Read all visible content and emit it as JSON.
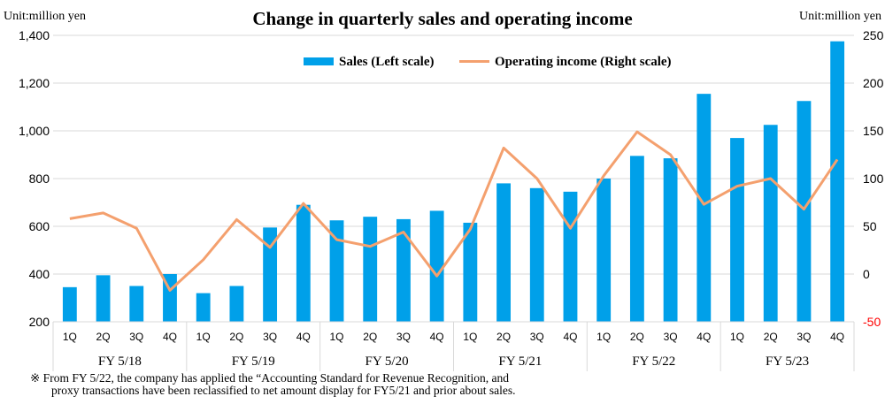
{
  "chart_data": {
    "type": "bar+line",
    "title": "Change in quarterly sales and operating income",
    "left_unit": "Unit:million yen",
    "right_unit": "Unit:million yen",
    "left_axis": {
      "min": 200,
      "max": 1400,
      "ticks": [
        "200",
        "400",
        "600",
        "800",
        "1,000",
        "1,200",
        "1,400"
      ]
    },
    "right_axis": {
      "min": -50,
      "max": 250,
      "ticks": [
        "-50",
        "0",
        "50",
        "100",
        "150",
        "200",
        "250"
      ]
    },
    "right_axis_negative_color": "#ff0000",
    "grid": true,
    "legend_position": "top-center",
    "groups": [
      {
        "label": "FY 5/18",
        "quarters": [
          "1Q",
          "2Q",
          "3Q",
          "4Q"
        ]
      },
      {
        "label": "FY 5/19",
        "quarters": [
          "1Q",
          "2Q",
          "3Q",
          "4Q"
        ]
      },
      {
        "label": "FY 5/20",
        "quarters": [
          "1Q",
          "2Q",
          "3Q",
          "4Q"
        ]
      },
      {
        "label": "FY 5/21",
        "quarters": [
          "1Q",
          "2Q",
          "3Q",
          "4Q"
        ]
      },
      {
        "label": "FY 5/22",
        "quarters": [
          "1Q",
          "2Q",
          "3Q",
          "4Q"
        ]
      },
      {
        "label": "FY 5/23",
        "quarters": [
          "1Q",
          "2Q",
          "3Q",
          "4Q"
        ]
      }
    ],
    "series": [
      {
        "name": "Sales (Left scale)",
        "type": "bar",
        "axis": "left",
        "color": "#00a0e9",
        "values": [
          345,
          395,
          350,
          400,
          320,
          350,
          595,
          690,
          625,
          640,
          630,
          665,
          615,
          780,
          760,
          745,
          800,
          895,
          885,
          1155,
          970,
          1025,
          1125,
          1375
        ]
      },
      {
        "name": "Operating income (Right scale)",
        "type": "line",
        "axis": "right",
        "color": "#f4a06e",
        "values": [
          58,
          64,
          48,
          -17,
          15,
          57,
          28,
          74,
          36,
          29,
          44,
          -2,
          47,
          132,
          100,
          48,
          103,
          149,
          125,
          73,
          92,
          100,
          68,
          120
        ]
      }
    ],
    "footnote": {
      "line1": "※ From FY 5/22, the company has applied the “Accounting Standard for Revenue Recognition, and",
      "line2": "proxy transactions have been reclassified to net amount display for FY5/21 and prior about sales."
    }
  }
}
